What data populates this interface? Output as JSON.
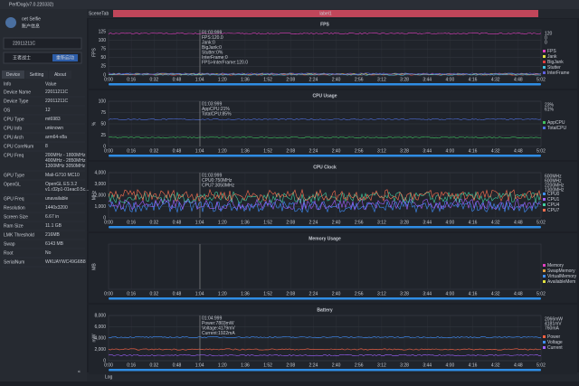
{
  "window": {
    "title": "PerfDog(v7.0.220332)"
  },
  "sidebar": {
    "user": "oet Selfie",
    "account": "账户信息",
    "device": "22011211C",
    "app": "王者战士",
    "restart": "重新启动",
    "tabs": [
      "Device",
      "Setting",
      "About"
    ],
    "table": {
      "header": [
        "Info",
        "Value"
      ],
      "rows": [
        [
          "Device Name",
          "22011211C"
        ],
        [
          "Device Type",
          "22011211C"
        ],
        [
          "OS",
          "12"
        ],
        [
          "CPU Type",
          "mt6983"
        ],
        [
          "CPU Info",
          "unknown"
        ],
        [
          "CPU Arch",
          "arm64-v8a"
        ],
        [
          "CPU CoreNum",
          "8"
        ],
        [
          "CPU Freq",
          "200MHz - 1800MHz 400MHz - 2850MHz 1300MHz 3050MHz"
        ],
        [
          "GPU Type",
          "Mali-G710 MC10"
        ],
        [
          "OpenGL",
          "OpenGL ES 3.2 v1.r32p1-01eac0.5c..."
        ],
        [
          "GPU Freq",
          "unavailable"
        ],
        [
          "Resolution",
          "1440x3200"
        ],
        [
          "Screen Size",
          "6.67 in"
        ],
        [
          "Ram Size",
          "11.1 GB"
        ],
        [
          "LMK Threshold",
          "216MB"
        ],
        [
          "Swap",
          "6143 MB"
        ],
        [
          "Root",
          "No"
        ],
        [
          "SerialNum",
          "WKUAYWC49G6B8"
        ]
      ]
    }
  },
  "toolbar": {
    "scene": "SceneTab",
    "label": "label1"
  },
  "times": [
    "0:00",
    "0:16",
    "0:32",
    "0:48",
    "1:04",
    "1:20",
    "1:36",
    "1:52",
    "2:08",
    "2:24",
    "2:40",
    "2:56",
    "3:12",
    "3:28",
    "3:44",
    "4:00",
    "4:16",
    "4:32",
    "4:48",
    "5:02"
  ],
  "charts": [
    {
      "title": "FPS",
      "unit": "FPS",
      "ylim": [
        0,
        130
      ],
      "yticks": [
        0,
        25,
        50,
        75,
        100,
        125
      ],
      "legend": [
        {
          "name": "FPS",
          "color": "#e040c0"
        },
        {
          "name": "Jank",
          "color": "#e0e040"
        },
        {
          "name": "BigJank",
          "color": "#e04040"
        },
        {
          "name": "Stutter",
          "color": "#40c0e0"
        },
        {
          "name": "InterFrame",
          "color": "#6060e0"
        }
      ],
      "readout": [
        "120",
        "0",
        "0"
      ],
      "tooltip": [
        "01:03:999",
        "FPS:120.0",
        "Jank:0",
        "BigJank:0",
        "Stutter:0%",
        "InterFrame:0",
        "FPS>InterFrame:120.0"
      ]
    },
    {
      "title": "CPU Usage",
      "unit": "%",
      "ylim": [
        0,
        100
      ],
      "yticks": [
        0,
        25,
        50,
        75,
        100
      ],
      "legend": [
        {
          "name": "AppCPU",
          "color": "#40c060"
        },
        {
          "name": "TotalCPU",
          "color": "#5070e0"
        }
      ],
      "readout": [
        "23%",
        "61%"
      ],
      "tooltip": [
        "01:03:999",
        "AppCPU:21%",
        "TotalCPU:85%"
      ]
    },
    {
      "title": "CPU Clock",
      "unit": "MHz",
      "ylim": [
        0,
        4000
      ],
      "yticks": [
        0,
        {
          "value": 1000,
          "label": "1,000"
        },
        {
          "value": 2000,
          "label": "2,000"
        },
        {
          "value": 3000,
          "label": "3,000"
        },
        {
          "value": 4000,
          "label": "4,000"
        }
      ],
      "legend": [
        {
          "name": "CPU0",
          "color": "#4090ff"
        },
        {
          "name": "CPU1",
          "color": "#a060ff"
        },
        {
          "name": "CPU4",
          "color": "#40d0a0"
        },
        {
          "name": "CPU7",
          "color": "#ff7050"
        }
      ],
      "readout": [
        "600MHz",
        "600MHz",
        "2200MHz",
        "1300MHz"
      ],
      "tooltip": [
        "01:03:999",
        "CPU0:750MHz",
        "CPU7:3050MHz"
      ]
    },
    {
      "title": "Memory Usage",
      "unit": "MB",
      "ylim": [
        0,
        1
      ],
      "yticks": [],
      "legend": [
        {
          "name": "Memory",
          "color": "#e040c0"
        },
        {
          "name": "SwapMemory",
          "color": "#e0a040"
        },
        {
          "name": "VirtualMemory",
          "color": "#4090ff"
        },
        {
          "name": "AvailableMem",
          "color": "#e0e040"
        }
      ],
      "readout": [],
      "tooltip": []
    },
    {
      "title": "Battery",
      "unit": "mW",
      "ylim": [
        0,
        8000
      ],
      "yticks": [
        0,
        {
          "value": 2000,
          "label": "2,000"
        },
        {
          "value": 4000,
          "label": "4,000"
        },
        {
          "value": 6000,
          "label": "6,000"
        },
        {
          "value": 8000,
          "label": "8,000"
        }
      ],
      "legend": [
        {
          "name": "Power",
          "color": "#ff6040"
        },
        {
          "name": "Voltage",
          "color": "#4090ff"
        },
        {
          "name": "Current",
          "color": "#a060ff"
        }
      ],
      "readout": [
        "2066mW",
        "4181mV",
        "760mA"
      ],
      "tooltip": [
        "01:04:999",
        "Power:7803mW",
        "Voltage:4179mV",
        "Current:1922mA"
      ]
    }
  ],
  "footer": {
    "log": "Log"
  }
}
